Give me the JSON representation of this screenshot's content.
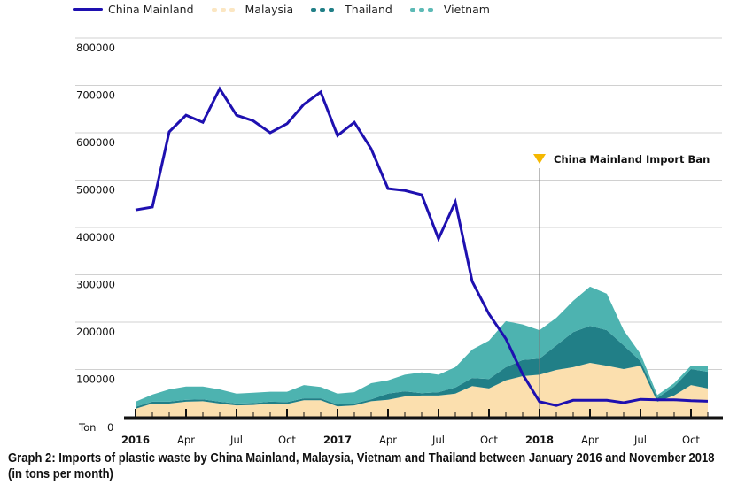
{
  "chart_data": {
    "type": "area",
    "title": "",
    "xlabel": "",
    "ylabel": "Ton",
    "ylim": [
      0,
      800000
    ],
    "yticks": [
      "0",
      "100000",
      "200000",
      "300000",
      "400000",
      "500000",
      "600000",
      "700000",
      "800000"
    ],
    "x_tick_labels": [
      {
        "month_index": 0,
        "label": "2016",
        "bold": true
      },
      {
        "month_index": 3,
        "label": "Apr"
      },
      {
        "month_index": 6,
        "label": "Jul"
      },
      {
        "month_index": 9,
        "label": "Oct"
      },
      {
        "month_index": 12,
        "label": "2017",
        "bold": true
      },
      {
        "month_index": 15,
        "label": "Apr"
      },
      {
        "month_index": 18,
        "label": "Jul"
      },
      {
        "month_index": 21,
        "label": "Oct"
      },
      {
        "month_index": 24,
        "label": "2018",
        "bold": true
      },
      {
        "month_index": 27,
        "label": "Apr"
      },
      {
        "month_index": 30,
        "label": "Jul"
      },
      {
        "month_index": 33,
        "label": "Oct"
      }
    ],
    "x_range": "Jan 2016 - Nov 2018 (monthly)",
    "grid": true,
    "legend_placement": "top-left",
    "annotation": {
      "label": "China Mainland Import Ban",
      "month_index": 24
    },
    "series": [
      {
        "name": "China Mainland",
        "style": "line",
        "color": "#1e10b0",
        "values": [
          437000,
          443000,
          602000,
          637000,
          622000,
          693000,
          637000,
          625000,
          600000,
          619000,
          660000,
          686000,
          594000,
          622000,
          566000,
          482000,
          478000,
          469000,
          376000,
          454000,
          286000,
          217000,
          165000,
          90000,
          32000,
          24000,
          35000,
          35000,
          35000,
          30000,
          37000,
          36000,
          36000,
          34000,
          33000
        ]
      },
      {
        "name": "Malaysia",
        "style": "stacked-area",
        "color": "#fbdfae",
        "values": [
          17000,
          28000,
          28000,
          32000,
          33000,
          28000,
          24000,
          25000,
          28000,
          27000,
          35000,
          35000,
          22000,
          24000,
          33000,
          36000,
          43000,
          45000,
          45000,
          49000,
          65000,
          60000,
          77000,
          86000,
          89000,
          99000,
          105000,
          114000,
          108000,
          101000,
          108000,
          32000,
          45000,
          67000,
          60000
        ]
      },
      {
        "name": "Thailand",
        "style": "stacked-area",
        "color": "#217f87",
        "values": [
          4000,
          4000,
          4000,
          4000,
          4000,
          4000,
          4000,
          4000,
          4000,
          4000,
          4000,
          4000,
          4000,
          4000,
          4000,
          13000,
          11000,
          5000,
          7000,
          13000,
          17000,
          20000,
          28000,
          34000,
          34000,
          52000,
          74000,
          78000,
          75000,
          50000,
          10000,
          8000,
          19000,
          34000,
          35000
        ]
      },
      {
        "name": "Vietnam",
        "style": "stacked-area",
        "color": "#4db3b0",
        "values": [
          11000,
          15000,
          26000,
          28000,
          27000,
          26000,
          21000,
          22000,
          21000,
          22000,
          28000,
          24000,
          23000,
          24000,
          34000,
          28000,
          35000,
          44000,
          37000,
          43000,
          60000,
          81000,
          97000,
          75000,
          60000,
          58000,
          66000,
          83000,
          77000,
          32000,
          15000,
          6000,
          7000,
          7000,
          13000
        ]
      }
    ]
  },
  "legend": {
    "china": "China Mainland",
    "malaysia": "Malaysia",
    "thailand": "Thailand",
    "vietnam": "Vietnam"
  },
  "axis": {
    "unit_label": "Ton",
    "zero_label": "0"
  },
  "caption": "Graph 2: Imports of plastic waste by China Mainland, Malaysia, Vietnam and Thailand between January 2016 and November 2018 (in tons per month)",
  "colors": {
    "ban_marker": "#f5b800",
    "grid": "#d0d0d0",
    "axis": "#111111"
  }
}
